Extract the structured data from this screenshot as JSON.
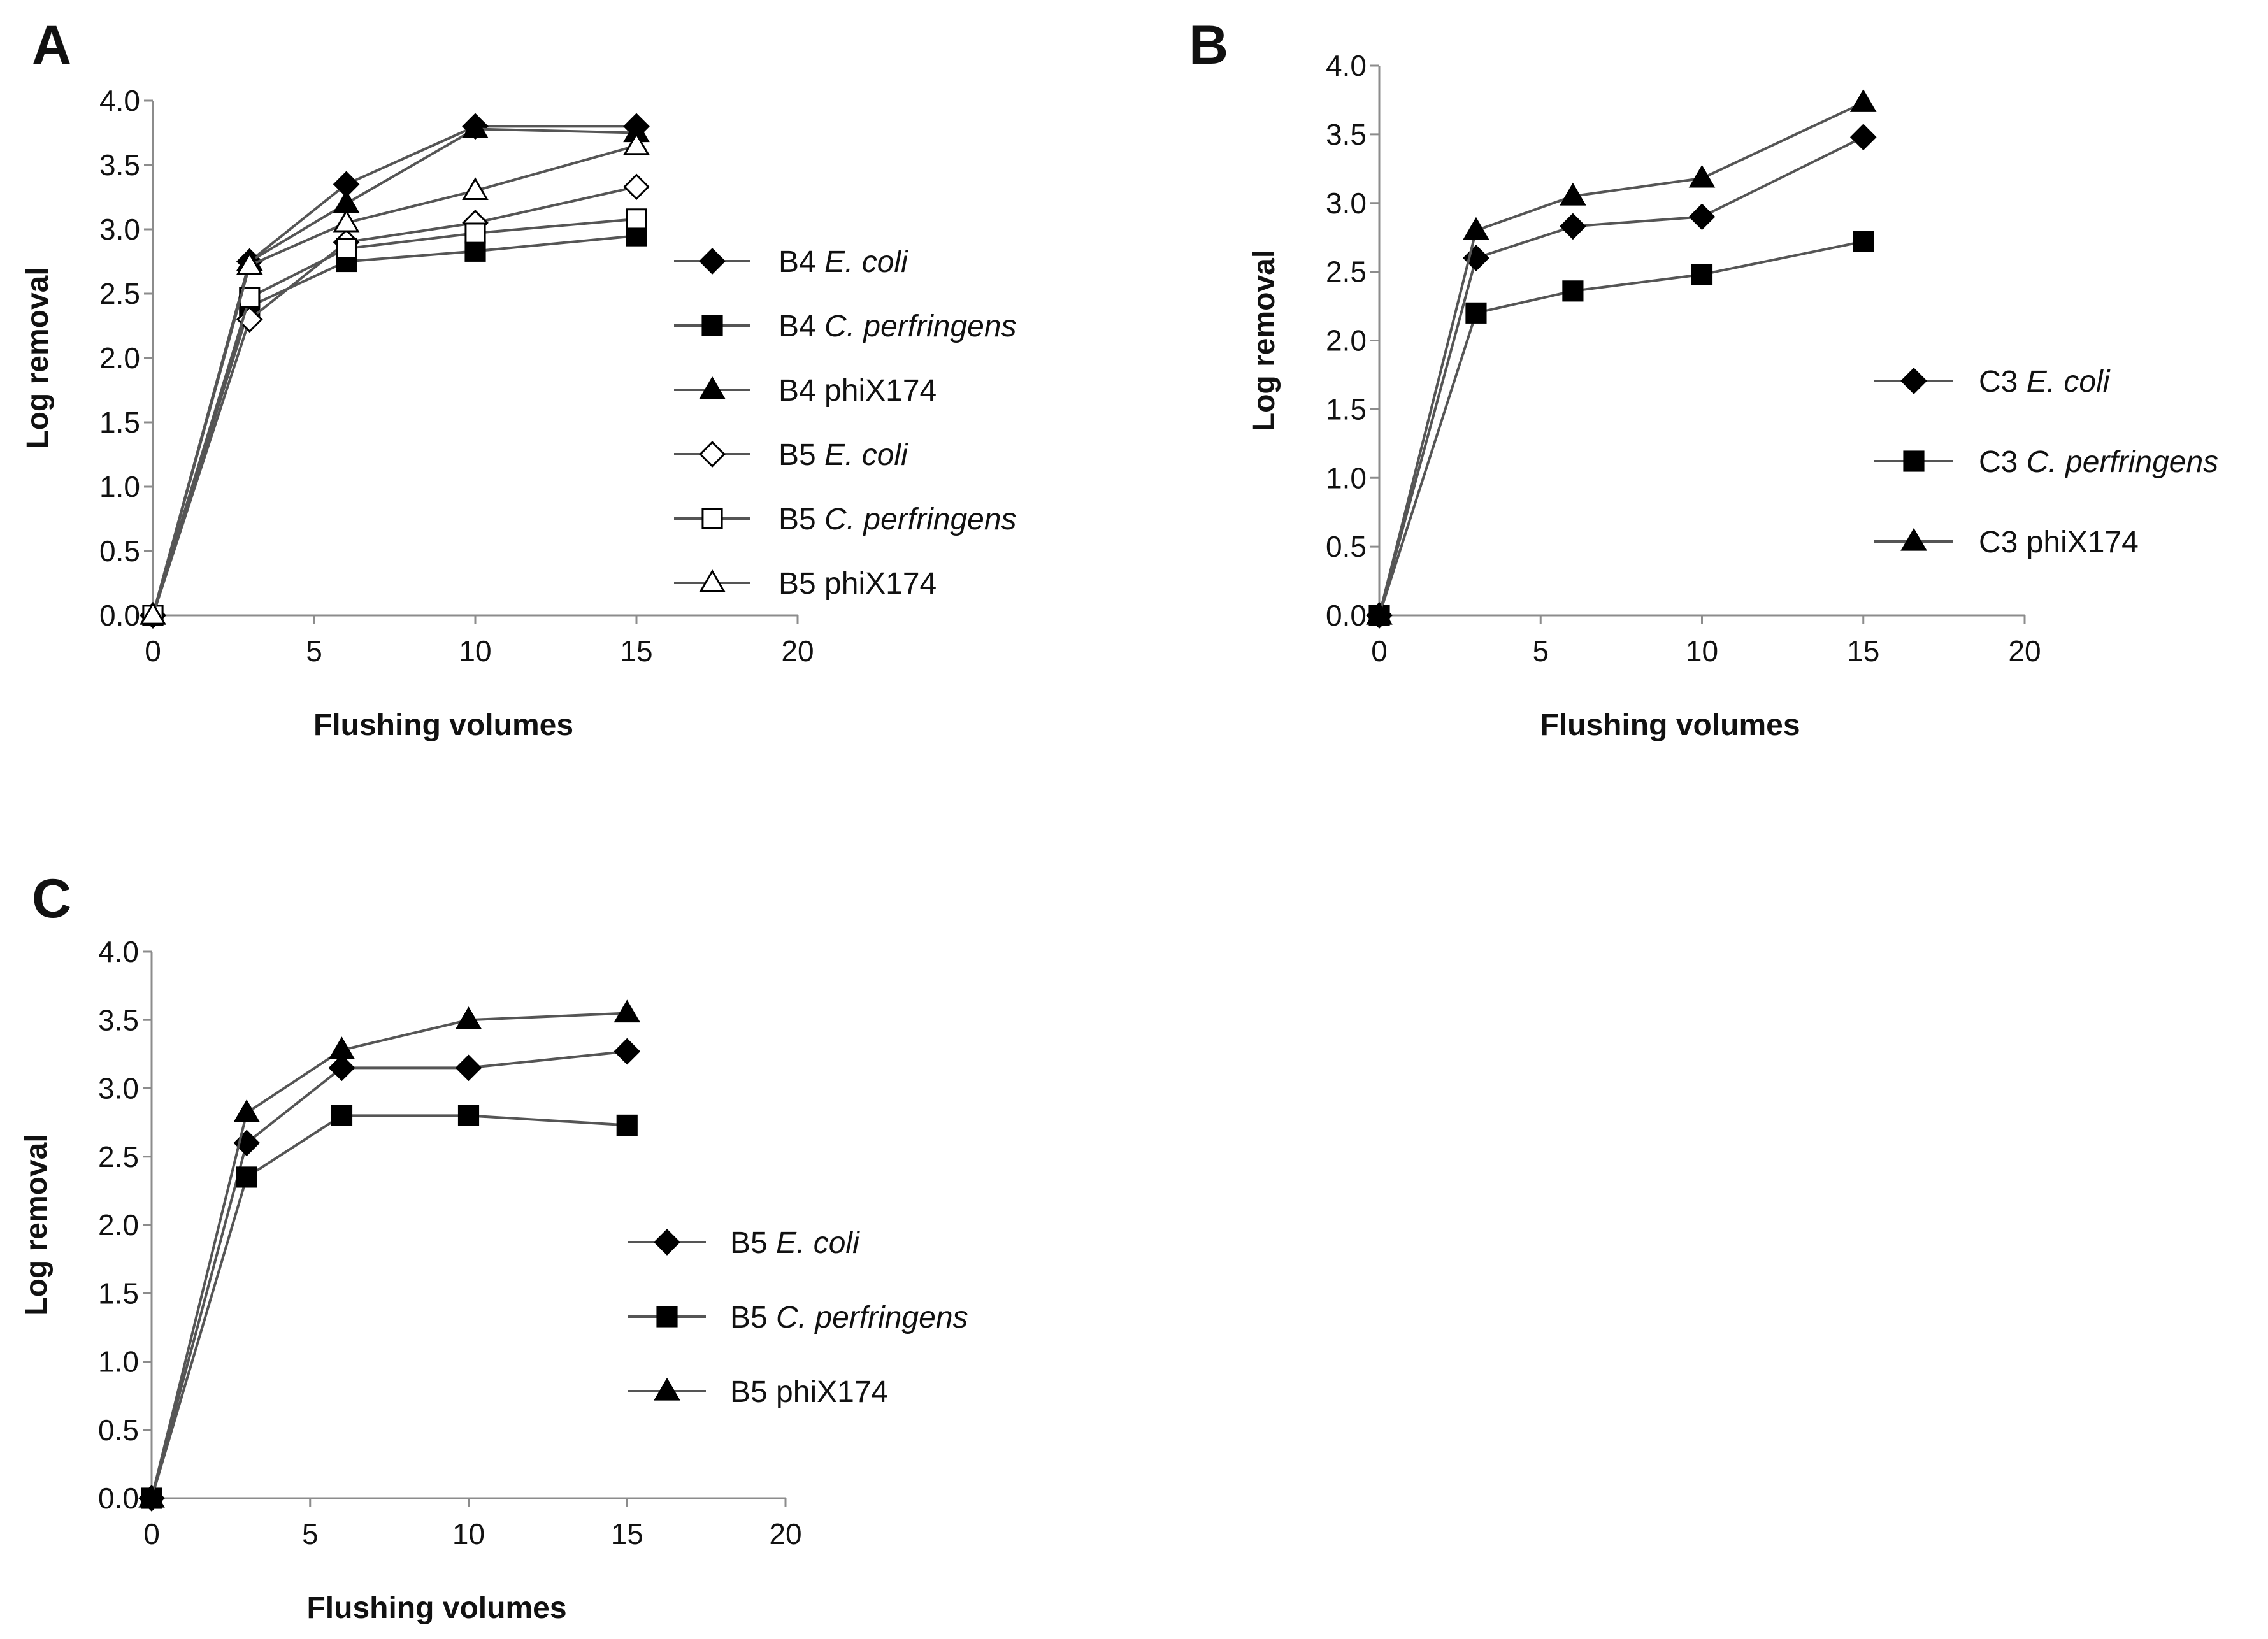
{
  "charts": [
    {
      "id": "A",
      "panel_label": "A",
      "xlabel": "Flushing volumes",
      "ylabel": "Log removal",
      "xlim": [
        0,
        20
      ],
      "ylim": [
        0.0,
        4.0
      ],
      "xticks": [
        "0",
        "5",
        "10",
        "15",
        "20"
      ],
      "yticks": [
        "0.0",
        "0.5",
        "1.0",
        "1.5",
        "2.0",
        "2.5",
        "3.0",
        "3.5",
        "4.0"
      ],
      "legend": [
        {
          "prefix": "B4 ",
          "organism": "E. coli",
          "italic": true,
          "marker": "diamond",
          "filled": true
        },
        {
          "prefix": "B4 ",
          "organism": "C. perfringens",
          "italic": true,
          "marker": "square",
          "filled": true
        },
        {
          "prefix": "B4 ",
          "organism": "phiX174",
          "italic": false,
          "marker": "triangle",
          "filled": true
        },
        {
          "prefix": "B5 ",
          "organism": "E. coli",
          "italic": true,
          "marker": "diamond",
          "filled": false
        },
        {
          "prefix": "B5 ",
          "organism": "C. perfringens",
          "italic": true,
          "marker": "square",
          "filled": false
        },
        {
          "prefix": "B5 ",
          "organism": "phiX174",
          "italic": false,
          "marker": "triangle",
          "filled": false
        }
      ]
    },
    {
      "id": "B",
      "panel_label": "B",
      "xlabel": "Flushing volumes",
      "ylabel": "Log removal",
      "xlim": [
        0,
        20
      ],
      "ylim": [
        0.0,
        4.0
      ],
      "xticks": [
        "0",
        "5",
        "10",
        "15",
        "20"
      ],
      "yticks": [
        "0.0",
        "0.5",
        "1.0",
        "1.5",
        "2.0",
        "2.5",
        "3.0",
        "3.5",
        "4.0"
      ],
      "legend": [
        {
          "prefix": "C3 ",
          "organism": "E. coli",
          "italic": true,
          "marker": "diamond",
          "filled": true
        },
        {
          "prefix": "C3 ",
          "organism": "C. perfringens",
          "italic": true,
          "marker": "square",
          "filled": true
        },
        {
          "prefix": "C3 ",
          "organism": "phiX174",
          "italic": false,
          "marker": "triangle",
          "filled": true
        }
      ]
    },
    {
      "id": "C",
      "panel_label": "C",
      "xlabel": "Flushing volumes",
      "ylabel": "Log removal",
      "xlim": [
        0,
        20
      ],
      "ylim": [
        0.0,
        4.0
      ],
      "xticks": [
        "0",
        "5",
        "10",
        "15",
        "20"
      ],
      "yticks": [
        "0.0",
        "0.5",
        "1.0",
        "1.5",
        "2.0",
        "2.5",
        "3.0",
        "3.5",
        "4.0"
      ],
      "legend": [
        {
          "prefix": "B5 ",
          "organism": "E. coli",
          "italic": true,
          "marker": "diamond",
          "filled": true
        },
        {
          "prefix": "B5 ",
          "organism": "C. perfringens",
          "italic": true,
          "marker": "square",
          "filled": true
        },
        {
          "prefix": "B5 ",
          "organism": "phiX174",
          "italic": false,
          "marker": "triangle",
          "filled": true
        }
      ]
    }
  ],
  "colors": {
    "line": "#555555",
    "marker": "#000000",
    "axis": "#8c8c8c",
    "background": "#ffffff"
  },
  "chart_data": [
    {
      "type": "line",
      "panel": "A",
      "xlabel": "Flushing volumes",
      "ylabel": "Log removal",
      "xlim": [
        0,
        20
      ],
      "ylim": [
        0.0,
        4.0
      ],
      "x": [
        0,
        3,
        6,
        10,
        15
      ],
      "grid": false,
      "legend_position": "right",
      "series": [
        {
          "name": "B4 E. coli",
          "values": [
            0.0,
            2.75,
            3.35,
            3.8,
            3.8
          ]
        },
        {
          "name": "B4 C. perfringens",
          "values": [
            0.0,
            2.4,
            2.75,
            2.83,
            2.95
          ]
        },
        {
          "name": "B4 phiX174",
          "values": [
            0.0,
            2.75,
            3.2,
            3.78,
            3.75
          ]
        },
        {
          "name": "B5 E. coli",
          "values": [
            0.0,
            2.3,
            2.9,
            3.05,
            3.33
          ]
        },
        {
          "name": "B5 C. perfringens",
          "values": [
            0.0,
            2.47,
            2.85,
            2.97,
            3.08
          ]
        },
        {
          "name": "B5 phiX174",
          "values": [
            0.0,
            2.72,
            3.05,
            3.3,
            3.65
          ]
        }
      ]
    },
    {
      "type": "line",
      "panel": "B",
      "xlabel": "Flushing volumes",
      "ylabel": "Log removal",
      "xlim": [
        0,
        20
      ],
      "ylim": [
        0.0,
        4.0
      ],
      "x": [
        0,
        3,
        6,
        10,
        15
      ],
      "grid": false,
      "legend_position": "right",
      "series": [
        {
          "name": "C3 E. coli",
          "values": [
            0.0,
            2.6,
            2.83,
            2.9,
            3.48
          ]
        },
        {
          "name": "C3 C. perfringens",
          "values": [
            0.0,
            2.2,
            2.36,
            2.48,
            2.72
          ]
        },
        {
          "name": "C3 phiX174",
          "values": [
            0.0,
            2.8,
            3.05,
            3.18,
            3.73
          ]
        }
      ]
    },
    {
      "type": "line",
      "panel": "C",
      "xlabel": "Flushing volumes",
      "ylabel": "Log removal",
      "xlim": [
        0,
        20
      ],
      "ylim": [
        0.0,
        4.0
      ],
      "x": [
        0,
        3,
        6,
        10,
        15
      ],
      "grid": false,
      "legend_position": "right",
      "series": [
        {
          "name": "B5 E. coli",
          "values": [
            0.0,
            2.6,
            3.15,
            3.15,
            3.27
          ]
        },
        {
          "name": "B5 C. perfringens",
          "values": [
            0.0,
            2.35,
            2.8,
            2.8,
            2.73
          ]
        },
        {
          "name": "B5 phiX174",
          "values": [
            0.0,
            2.82,
            3.28,
            3.5,
            3.55
          ]
        }
      ]
    }
  ]
}
